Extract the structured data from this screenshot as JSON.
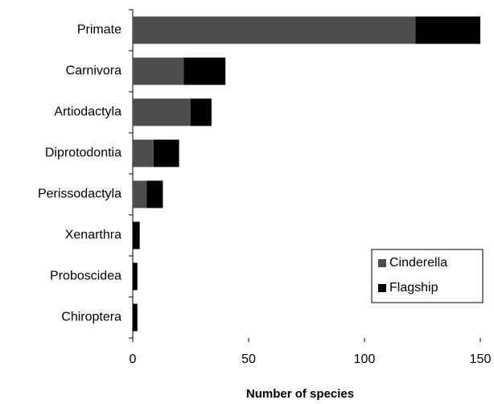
{
  "chart_data": {
    "type": "bar",
    "orientation": "horizontal",
    "stacked": true,
    "xlabel": "Number of species",
    "categories": [
      "Primate",
      "Carnivora",
      "Artiodactyla",
      "Diprotodontia",
      "Perissodactyla",
      "Xenarthra",
      "Proboscidea",
      "Chiroptera"
    ],
    "series": [
      {
        "name": "Cinderella",
        "color": "#4d4d4d",
        "values": [
          122,
          22,
          25,
          9,
          6,
          0,
          0,
          0
        ]
      },
      {
        "name": "Flagship",
        "color": "#000000",
        "values": [
          28,
          18,
          9,
          11,
          7,
          3,
          2,
          2
        ]
      }
    ],
    "xlim": [
      0,
      150
    ],
    "xticks": [
      0,
      50,
      100,
      150
    ],
    "grid": false,
    "legend": "lower right"
  }
}
